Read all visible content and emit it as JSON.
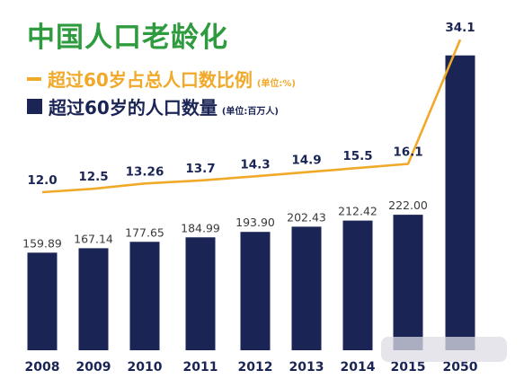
{
  "chart_data": {
    "type": "bar",
    "title": "中国人口老龄化",
    "categories": [
      "2008",
      "2009",
      "2010",
      "2011",
      "2012",
      "2013",
      "2014",
      "2015",
      "2050"
    ],
    "series": [
      {
        "name": "超过60岁的人口数量",
        "unit": "(单位:百万人)",
        "type": "bar",
        "values": [
          159.89,
          167.14,
          177.65,
          184.99,
          193.9,
          202.43,
          212.42,
          222.0,
          483.0
        ],
        "labels": [
          "159.89",
          "167.14",
          "177.65",
          "184.99",
          "193.90",
          "202.43",
          "212.42",
          "222.00",
          ""
        ]
      },
      {
        "name": "超过60岁占总人口数比例",
        "unit": "(单位:%)",
        "type": "line",
        "values": [
          12.0,
          12.5,
          13.26,
          13.7,
          14.3,
          14.9,
          15.5,
          16.1,
          34.1
        ],
        "labels": [
          "12.0",
          "12.5",
          "13.26",
          "13.7",
          "14.3",
          "14.9",
          "15.5",
          "16.1",
          "34.1"
        ]
      }
    ],
    "colors": {
      "title": "#2e9b3e",
      "line": "#f0a928",
      "bar": "#1b2555",
      "axis_labels": "#1b2555"
    },
    "legend_position": "top-left",
    "grid": false
  }
}
